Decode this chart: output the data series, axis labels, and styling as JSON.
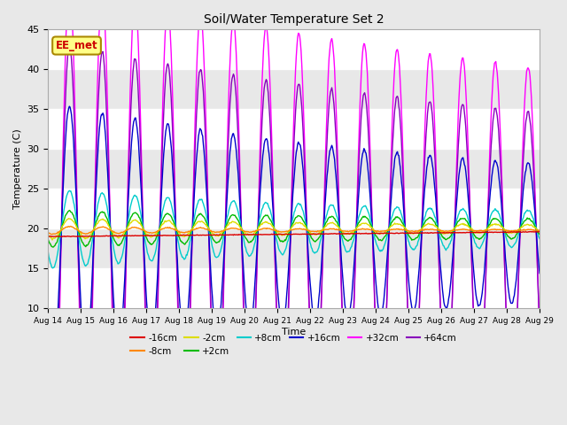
{
  "title": "Soil/Water Temperature Set 2",
  "xlabel": "Time",
  "ylabel": "Temperature (C)",
  "ylim": [
    10,
    45
  ],
  "xlim": [
    0,
    15
  ],
  "plot_bg_color": "#e8e8e8",
  "series": [
    {
      "label": "-16cm",
      "color": "#dd0000"
    },
    {
      "label": "-8cm",
      "color": "#ff8800"
    },
    {
      "label": "-2cm",
      "color": "#dddd00"
    },
    {
      "label": "+2cm",
      "color": "#00bb00"
    },
    {
      "label": "+8cm",
      "color": "#00cccc"
    },
    {
      "label": "+16cm",
      "color": "#0000cc"
    },
    {
      "label": "+32cm",
      "color": "#ff00ff"
    },
    {
      "label": "+64cm",
      "color": "#8800bb"
    }
  ],
  "xtick_labels": [
    "Aug 14",
    "Aug 15",
    "Aug 16",
    "Aug 17",
    "Aug 18",
    "Aug 19",
    "Aug 20",
    "Aug 21",
    "Aug 22",
    "Aug 23",
    "Aug 24",
    "Aug 25",
    "Aug 26",
    "Aug 27",
    "Aug 28",
    "Aug 29"
  ],
  "watermark_text": "EE_met",
  "watermark_color": "#cc0000",
  "watermark_bg": "#ffff88",
  "watermark_border": "#aa8800"
}
